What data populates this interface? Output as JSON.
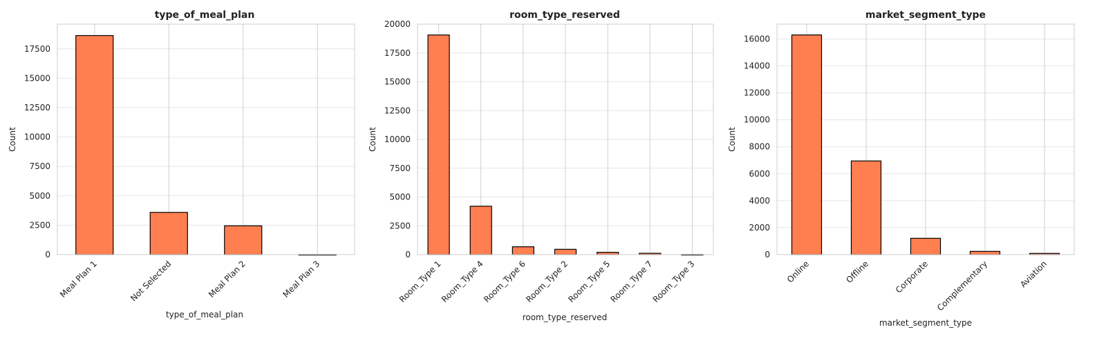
{
  "colors": {
    "bar_fill": "#ff7f50",
    "bar_edge": "#000000",
    "grid": "#e6e6e6",
    "frame": "#cccccc"
  },
  "chart_data": [
    {
      "type": "bar",
      "title": "type_of_meal_plan",
      "xlabel": "type_of_meal_plan",
      "ylabel": "Count",
      "categories": [
        "Meal Plan 1",
        "Not Selected",
        "Meal Plan 2",
        "Meal Plan 3"
      ],
      "values": [
        18630,
        3590,
        2450,
        5
      ],
      "ylim": [
        0,
        19600
      ],
      "yticks": [
        0,
        2500,
        5000,
        7500,
        10000,
        12500,
        15000,
        17500
      ],
      "grid": true
    },
    {
      "type": "bar",
      "title": "room_type_reserved",
      "xlabel": "room_type_reserved",
      "ylabel": "Count",
      "categories": [
        "Room_Type 1",
        "Room_Type 4",
        "Room_Type 6",
        "Room_Type 2",
        "Room_Type 5",
        "Room_Type 7",
        "Room_Type 3"
      ],
      "values": [
        19060,
        4200,
        680,
        460,
        200,
        115,
        7
      ],
      "ylim": [
        0,
        20000
      ],
      "yticks": [
        0,
        2500,
        5000,
        7500,
        10000,
        12500,
        15000,
        17500,
        20000
      ],
      "grid": true
    },
    {
      "type": "bar",
      "title": "market_segment_type",
      "xlabel": "market_segment_type",
      "ylabel": "Count",
      "categories": [
        "Online",
        "Offline",
        "Corporate",
        "Complementary",
        "Aviation"
      ],
      "values": [
        16300,
        6950,
        1210,
        240,
        90
      ],
      "ylim": [
        0,
        17100
      ],
      "yticks": [
        0,
        2000,
        4000,
        6000,
        8000,
        10000,
        12000,
        14000,
        16000
      ],
      "grid": true
    }
  ]
}
